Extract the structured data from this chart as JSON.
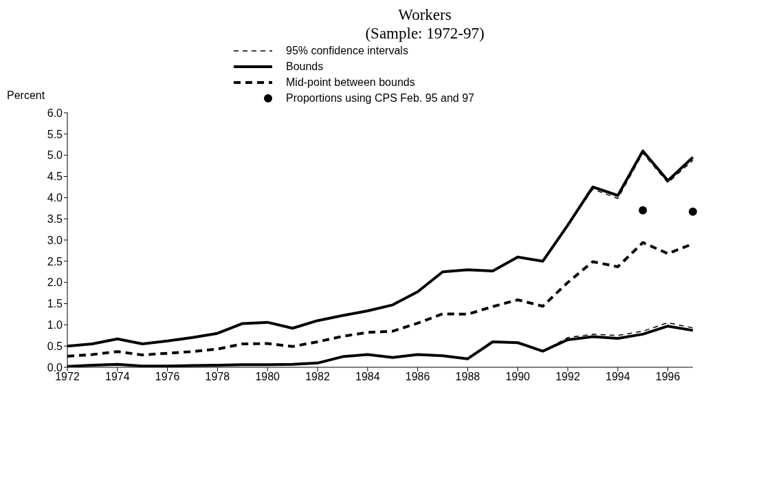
{
  "chart_data": {
    "type": "line",
    "title": "Workers",
    "subtitle": "(Sample: 1972-97)",
    "ylabel": "Percent",
    "x": [
      1972,
      1973,
      1974,
      1975,
      1976,
      1977,
      1978,
      1979,
      1980,
      1981,
      1982,
      1983,
      1984,
      1985,
      1986,
      1987,
      1988,
      1989,
      1990,
      1991,
      1992,
      1993,
      1994,
      1995,
      1996,
      1997
    ],
    "xlim": [
      1972,
      1997
    ],
    "xticks": [
      1972,
      1974,
      1976,
      1978,
      1980,
      1982,
      1984,
      1986,
      1988,
      1990,
      1992,
      1994,
      1996
    ],
    "ylim": [
      0,
      6
    ],
    "yticks": [
      {
        "value": 0,
        "label": "0.0"
      },
      0.5,
      {
        "value": 1,
        "label": "1.0"
      },
      1.5,
      {
        "value": 2,
        "label": "2.0"
      },
      2.5,
      {
        "value": 3,
        "label": "3.0"
      },
      3.5,
      {
        "value": 4,
        "label": "4.0"
      },
      4.5,
      {
        "value": 5,
        "label": "5.0"
      },
      5.5,
      {
        "value": 6,
        "label": "6.0"
      }
    ],
    "grid": false,
    "legend": "top",
    "marker": "none",
    "series": [
      {
        "name": "95% confidence intervals",
        "color": "#000000",
        "line_style": "dashed",
        "values": [
          0.5,
          0.55,
          0.67,
          0.55,
          0.62,
          0.7,
          0.8,
          1.03,
          1.06,
          0.92,
          1.1,
          1.22,
          1.33,
          1.47,
          1.78,
          2.25,
          2.3,
          2.27,
          2.6,
          2.5,
          3.35,
          4.2,
          3.98,
          5.05,
          4.35,
          4.88
        ]
      },
      {
        "color": "#000000",
        "line_style": "dashed",
        "values": [
          0.02,
          0.05,
          0.07,
          0.03,
          0.03,
          0.04,
          0.05,
          0.06,
          0.06,
          0.07,
          0.1,
          0.25,
          0.3,
          0.23,
          0.3,
          0.27,
          0.2,
          0.6,
          0.58,
          0.38,
          0.7,
          0.78,
          0.75,
          0.85,
          1.05,
          0.93
        ]
      },
      {
        "name": "Bounds",
        "color": "#000000",
        "line_style": "solid",
        "values": [
          0.5,
          0.55,
          0.67,
          0.55,
          0.62,
          0.7,
          0.8,
          1.03,
          1.06,
          0.92,
          1.1,
          1.22,
          1.33,
          1.47,
          1.78,
          2.25,
          2.3,
          2.27,
          2.6,
          2.5,
          3.35,
          4.25,
          4.05,
          5.1,
          4.4,
          4.95
        ]
      },
      {
        "color": "#000000",
        "line_style": "solid",
        "values": [
          0.02,
          0.05,
          0.07,
          0.03,
          0.03,
          0.04,
          0.05,
          0.06,
          0.06,
          0.07,
          0.1,
          0.25,
          0.3,
          0.23,
          0.3,
          0.27,
          0.2,
          0.6,
          0.58,
          0.38,
          0.65,
          0.72,
          0.68,
          0.78,
          0.97,
          0.87
        ]
      },
      {
        "name": "Mid-point between bounds",
        "color": "#000000",
        "line_style": "dashed",
        "values": [
          0.26,
          0.3,
          0.37,
          0.29,
          0.33,
          0.37,
          0.43,
          0.55,
          0.56,
          0.49,
          0.6,
          0.73,
          0.82,
          0.85,
          1.04,
          1.26,
          1.25,
          1.43,
          1.59,
          1.44,
          2.0,
          2.49,
          2.37,
          2.94,
          2.68,
          2.91
        ]
      },
      {
        "name": "Proportions using CPS Feb. 95 and 97",
        "type": "scatter",
        "marker": "circle",
        "color": "#000000",
        "x": [
          1995,
          1997
        ],
        "values": [
          3.7,
          3.67
        ]
      }
    ]
  }
}
